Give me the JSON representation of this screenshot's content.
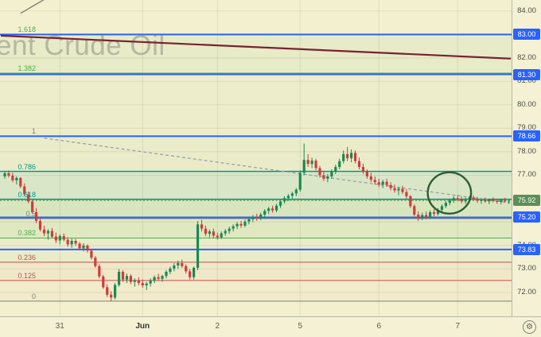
{
  "colors": {
    "bg_main": "#f3f0d0",
    "bg_axis": "#f4f1d4",
    "grid": "rgba(128,126,96,0.16)",
    "watermark": "rgba(140,140,128,0.55)",
    "blue": "#2962ff",
    "teal": "#009688",
    "green": "#4caf50",
    "gray": "#7d8271",
    "red": "#c0504a",
    "maroon": "#7a2230",
    "dashgray": "#9aa0a6",
    "corner": "#7d8272",
    "candle_up": "#188a52",
    "candle_down": "#d23b3b",
    "last_price_bg": "#5c8f58",
    "ellipse": "#2f5e35"
  },
  "controls": {
    "gear_icon": "⚙"
  },
  "chart_data": {
    "type": "candlestick",
    "watermark": "ent Crude Oil",
    "ylim": [
      70.98,
      84.47
    ],
    "grid": {
      "h_prices": [
        72,
        73,
        74,
        75,
        76,
        77,
        78,
        79,
        80,
        81,
        82,
        83,
        84
      ],
      "v_bars": [
        14,
        35,
        54,
        75,
        95,
        115
      ]
    },
    "x_axis": {
      "labels": [
        {
          "text": "31",
          "bar": 14
        },
        {
          "text": "Jun",
          "bar": 35,
          "emphasis": true
        },
        {
          "text": "2",
          "bar": 54
        },
        {
          "text": "5",
          "bar": 75
        },
        {
          "text": "6",
          "bar": 95
        },
        {
          "text": "7",
          "bar": 115
        }
      ]
    },
    "y_axis": {
      "plain_labels": [
        {
          "text": "84.00",
          "price": 84.0
        },
        {
          "text": "82.00",
          "price": 82.0
        },
        {
          "text": "81.00",
          "price": 81.0
        },
        {
          "text": "80.00",
          "price": 80.0
        },
        {
          "text": "79.00",
          "price": 79.0
        },
        {
          "text": "78.00",
          "price": 78.0
        },
        {
          "text": "77.00",
          "price": 77.0
        },
        {
          "text": "74.00",
          "price": 74.0
        },
        {
          "text": "73.00",
          "price": 73.0
        },
        {
          "text": "72.00",
          "price": 72.0
        }
      ],
      "badges": [
        {
          "text": "83.00",
          "price": 83.0,
          "style": "blue"
        },
        {
          "text": "81.30",
          "price": 81.3,
          "style": "blue"
        },
        {
          "text": "78.66",
          "price": 78.66,
          "style": "blue"
        },
        {
          "text": "75.92",
          "price": 75.92,
          "style": "last"
        },
        {
          "text": "75.20",
          "price": 75.2,
          "style": "blue"
        },
        {
          "text": "73.83",
          "price": 73.83,
          "style": "blue"
        }
      ]
    },
    "fib": {
      "levels": [
        {
          "label": "1.618",
          "price": 83.0,
          "color": "green",
          "width": 1
        },
        {
          "label": "1.382",
          "price": 81.35,
          "color": "green",
          "width": 1
        },
        {
          "label": "1",
          "price": 78.66,
          "color": "gray",
          "width": 1
        },
        {
          "label": "0.786",
          "price": 77.16,
          "color": "teal",
          "width": 1.5
        },
        {
          "label": "0.618",
          "price": 75.97,
          "color": "teal",
          "width": 1.5
        },
        {
          "label": "0.5",
          "price": 75.15,
          "color": "gray",
          "width": 1
        },
        {
          "label": "0.382",
          "price": 74.32,
          "color": "green",
          "width": 1
        },
        {
          "label": "0.236",
          "price": 73.29,
          "color": "red",
          "width": 1
        },
        {
          "label": "0.125",
          "price": 72.51,
          "color": "red",
          "width": 1
        },
        {
          "label": "0",
          "price": 71.63,
          "color": "gray",
          "width": 1
        }
      ]
    },
    "price_lines": [
      {
        "price": 83.0
      },
      {
        "price": 81.3
      },
      {
        "price": 78.66
      },
      {
        "price": 75.2
      },
      {
        "price": 73.83
      }
    ],
    "last_price": {
      "value": 75.92
    },
    "trend_lines": [
      {
        "name": "resistance-trendline",
        "b1": -1,
        "p1": 82.95,
        "b2": 128.5,
        "p2": 81.97,
        "color": "maroon",
        "w": 2.2
      },
      {
        "name": "descending-dashed-trendline",
        "b1": 10,
        "p1": 78.58,
        "b2": 128.3,
        "p2": 75.82,
        "color": "dashgray",
        "w": 1.3,
        "dash": true
      },
      {
        "name": "corner-line-fragment",
        "b1": 4,
        "p1": 83.9,
        "b2": 10.6,
        "p2": 84.55,
        "color": "corner",
        "w": 1.4
      }
    ],
    "ellipse": {
      "bar": 112.9,
      "price": 76.24,
      "rx_bars": 5.5,
      "ry_price": 0.88
    },
    "bands": [
      {
        "from": 83.0,
        "to": 81.35,
        "color": "rgba(76,175,80,0.06)"
      },
      {
        "from": 81.35,
        "to": 78.66,
        "color": "rgba(76,175,80,0.03)"
      },
      {
        "from": 78.66,
        "to": 77.16,
        "color": "rgba(76,175,80,0.05)"
      },
      {
        "from": 77.16,
        "to": 75.97,
        "color": "rgba(0,150,136,0.10)"
      },
      {
        "from": 75.97,
        "to": 75.15,
        "color": "rgba(76,175,80,0.15)"
      },
      {
        "from": 75.15,
        "to": 74.32,
        "color": "rgba(76,175,80,0.11)"
      },
      {
        "from": 74.32,
        "to": 73.29,
        "color": "rgba(76,175,80,0.05)"
      },
      {
        "from": 73.29,
        "to": 72.51,
        "color": "rgba(192,80,74,0.05)"
      },
      {
        "from": 72.51,
        "to": 71.63,
        "color": "rgba(192,80,74,0.03)"
      }
    ],
    "candles": [
      [
        76.95,
        77.15,
        76.85,
        77.08
      ],
      [
        77.08,
        77.2,
        76.9,
        76.98
      ],
      [
        76.98,
        77.1,
        76.7,
        76.78
      ],
      [
        76.78,
        76.95,
        76.6,
        76.88
      ],
      [
        76.88,
        76.92,
        76.45,
        76.52
      ],
      [
        76.52,
        76.65,
        76.1,
        76.18
      ],
      [
        76.18,
        76.3,
        75.8,
        75.88
      ],
      [
        75.88,
        75.95,
        75.35,
        75.42
      ],
      [
        75.42,
        75.6,
        74.95,
        75.05
      ],
      [
        75.05,
        75.15,
        74.6,
        74.68
      ],
      [
        74.68,
        74.85,
        74.4,
        74.52
      ],
      [
        74.52,
        74.7,
        74.25,
        74.62
      ],
      [
        74.62,
        74.75,
        74.3,
        74.38
      ],
      [
        74.38,
        74.55,
        74.1,
        74.22
      ],
      [
        74.22,
        74.48,
        74.05,
        74.4
      ],
      [
        74.4,
        74.52,
        74.18,
        74.25
      ],
      [
        74.25,
        74.35,
        73.95,
        74.05
      ],
      [
        74.05,
        74.3,
        73.9,
        74.2
      ],
      [
        74.2,
        74.28,
        73.98,
        74.08
      ],
      [
        74.08,
        74.15,
        73.8,
        73.88
      ],
      [
        73.88,
        74.1,
        73.75,
        74.0
      ],
      [
        74.0,
        74.05,
        73.7,
        73.78
      ],
      [
        73.78,
        73.85,
        73.4,
        73.48
      ],
      [
        73.48,
        73.55,
        73.05,
        73.12
      ],
      [
        73.12,
        73.2,
        72.6,
        72.68
      ],
      [
        72.68,
        72.75,
        72.15,
        72.22
      ],
      [
        72.22,
        72.35,
        71.8,
        71.9
      ],
      [
        71.9,
        72.05,
        71.62,
        71.78
      ],
      [
        71.78,
        72.4,
        71.7,
        72.32
      ],
      [
        72.32,
        73.0,
        72.25,
        72.88
      ],
      [
        72.88,
        72.95,
        72.45,
        72.55
      ],
      [
        72.55,
        72.8,
        72.4,
        72.7
      ],
      [
        72.7,
        72.78,
        72.35,
        72.45
      ],
      [
        72.45,
        72.6,
        72.25,
        72.52
      ],
      [
        72.52,
        72.65,
        72.3,
        72.4
      ],
      [
        72.4,
        72.55,
        72.2,
        72.3
      ],
      [
        72.3,
        72.45,
        72.1,
        72.38
      ],
      [
        72.38,
        72.6,
        72.25,
        72.5
      ],
      [
        72.5,
        72.72,
        72.4,
        72.65
      ],
      [
        72.65,
        72.8,
        72.5,
        72.58
      ],
      [
        72.58,
        72.75,
        72.45,
        72.7
      ],
      [
        72.7,
        72.95,
        72.6,
        72.88
      ],
      [
        72.88,
        73.1,
        72.78,
        73.02
      ],
      [
        73.02,
        73.25,
        72.9,
        73.15
      ],
      [
        73.15,
        73.35,
        73.0,
        73.25
      ],
      [
        73.25,
        73.4,
        73.05,
        73.12
      ],
      [
        73.12,
        73.2,
        72.8,
        72.9
      ],
      [
        72.9,
        73.0,
        72.55,
        72.65
      ],
      [
        72.65,
        73.1,
        72.55,
        73.05
      ],
      [
        73.05,
        75.05,
        72.95,
        74.9
      ],
      [
        74.9,
        75.1,
        74.6,
        74.72
      ],
      [
        74.72,
        74.85,
        74.4,
        74.5
      ],
      [
        74.5,
        74.68,
        74.35,
        74.6
      ],
      [
        74.6,
        74.72,
        74.3,
        74.42
      ],
      [
        74.42,
        74.55,
        74.25,
        74.35
      ],
      [
        74.35,
        74.6,
        74.28,
        74.52
      ],
      [
        74.52,
        74.7,
        74.42,
        74.62
      ],
      [
        74.62,
        74.8,
        74.5,
        74.72
      ],
      [
        74.72,
        74.9,
        74.6,
        74.82
      ],
      [
        74.82,
        75.0,
        74.7,
        74.92
      ],
      [
        74.92,
        75.05,
        74.75,
        74.85
      ],
      [
        74.85,
        75.1,
        74.78,
        75.02
      ],
      [
        75.02,
        75.2,
        74.9,
        75.12
      ],
      [
        75.12,
        75.3,
        75.0,
        75.22
      ],
      [
        75.22,
        75.35,
        75.05,
        75.15
      ],
      [
        75.15,
        75.4,
        75.08,
        75.32
      ],
      [
        75.32,
        75.55,
        75.22,
        75.48
      ],
      [
        75.48,
        75.65,
        75.35,
        75.58
      ],
      [
        75.58,
        75.7,
        75.4,
        75.5
      ],
      [
        75.5,
        75.78,
        75.42,
        75.7
      ],
      [
        75.7,
        75.95,
        75.6,
        75.88
      ],
      [
        75.88,
        76.1,
        75.78,
        76.02
      ],
      [
        76.02,
        76.2,
        75.9,
        76.12
      ],
      [
        76.12,
        76.3,
        76.0,
        76.22
      ],
      [
        76.22,
        76.45,
        76.1,
        76.38
      ],
      [
        76.38,
        77.2,
        76.3,
        77.1
      ],
      [
        77.1,
        78.35,
        77.0,
        77.65
      ],
      [
        77.65,
        77.9,
        77.35,
        77.48
      ],
      [
        77.48,
        77.75,
        77.3,
        77.62
      ],
      [
        77.62,
        77.7,
        77.2,
        77.3
      ],
      [
        77.3,
        77.4,
        76.9,
        77.0
      ],
      [
        77.0,
        77.15,
        76.75,
        76.85
      ],
      [
        76.85,
        77.05,
        76.7,
        76.95
      ],
      [
        76.95,
        77.25,
        76.85,
        77.15
      ],
      [
        77.15,
        77.45,
        77.05,
        77.35
      ],
      [
        77.35,
        77.7,
        77.25,
        77.6
      ],
      [
        77.6,
        78.05,
        77.5,
        77.9
      ],
      [
        77.9,
        78.2,
        77.6,
        77.72
      ],
      [
        77.72,
        78.1,
        77.55,
        77.95
      ],
      [
        77.95,
        78.05,
        77.5,
        77.6
      ],
      [
        77.6,
        77.75,
        77.25,
        77.35
      ],
      [
        77.35,
        77.5,
        77.05,
        77.15
      ],
      [
        77.15,
        77.25,
        76.85,
        76.95
      ],
      [
        76.95,
        77.1,
        76.7,
        76.8
      ],
      [
        76.8,
        76.95,
        76.6,
        76.7
      ],
      [
        76.7,
        76.85,
        76.5,
        76.6
      ],
      [
        76.6,
        76.8,
        76.45,
        76.72
      ],
      [
        76.72,
        76.85,
        76.5,
        76.58
      ],
      [
        76.58,
        76.7,
        76.35,
        76.45
      ],
      [
        76.45,
        76.6,
        76.25,
        76.35
      ],
      [
        76.35,
        76.5,
        76.15,
        76.42
      ],
      [
        76.42,
        76.55,
        76.2,
        76.28
      ],
      [
        76.28,
        76.4,
        76.0,
        76.1
      ],
      [
        76.1,
        76.15,
        75.6,
        75.68
      ],
      [
        75.68,
        75.75,
        75.25,
        75.32
      ],
      [
        75.32,
        75.45,
        75.05,
        75.15
      ],
      [
        75.15,
        75.4,
        75.08,
        75.3
      ],
      [
        75.3,
        75.45,
        75.12,
        75.22
      ],
      [
        75.22,
        75.5,
        75.15,
        75.42
      ],
      [
        75.42,
        75.55,
        75.25,
        75.35
      ],
      [
        75.35,
        75.6,
        75.28,
        75.52
      ],
      [
        75.52,
        75.75,
        75.45,
        75.68
      ],
      [
        75.68,
        75.9,
        75.6,
        75.82
      ],
      [
        75.82,
        76.0,
        75.72,
        75.92
      ],
      [
        75.92,
        76.1,
        75.82,
        76.02
      ],
      [
        76.02,
        76.15,
        75.88,
        75.95
      ],
      [
        75.95,
        76.08,
        75.8,
        75.88
      ],
      [
        75.88,
        76.05,
        75.78,
        75.98
      ],
      [
        75.98,
        76.12,
        75.85,
        76.05
      ],
      [
        76.05,
        76.15,
        75.9,
        75.97
      ],
      [
        75.97,
        76.08,
        75.82,
        75.9
      ],
      [
        75.9,
        76.02,
        75.78,
        75.95
      ],
      [
        75.95,
        76.05,
        75.82,
        75.88
      ],
      [
        75.88,
        76.0,
        75.76,
        75.96
      ],
      [
        75.96,
        76.06,
        75.84,
        75.9
      ],
      [
        75.9,
        76.0,
        75.78,
        75.86
      ],
      [
        75.86,
        75.98,
        75.75,
        75.94
      ],
      [
        75.94,
        76.04,
        75.82,
        75.88
      ],
      [
        75.88,
        75.98,
        75.78,
        75.92
      ]
    ]
  }
}
